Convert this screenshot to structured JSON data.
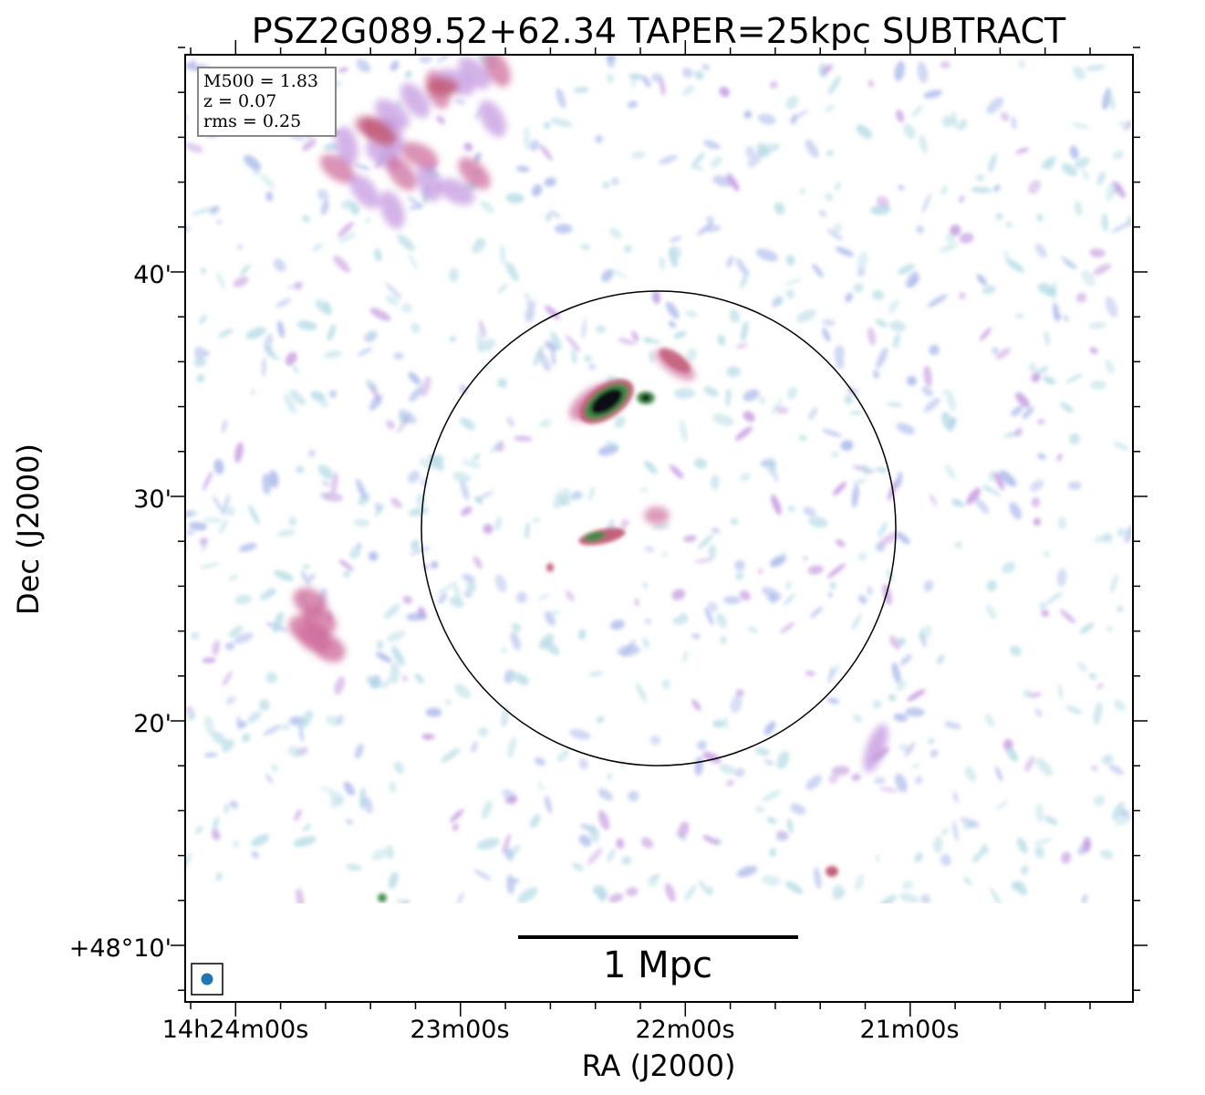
{
  "title": "PSZ2G089.52+62.34 TAPER=25kpc SUBTRACT",
  "x_axis": {
    "label": "RA (J2000)",
    "ticks": [
      "14h24m00s",
      "23m00s",
      "22m00s",
      "21m00s"
    ]
  },
  "y_axis": {
    "label": "Dec (J2000)",
    "ticks": [
      "40'",
      "30'",
      "20'",
      "+48°10'"
    ]
  },
  "info_box": {
    "m500": "M500 = 1.83",
    "z": "z = 0.07",
    "rms": "rms = 0.25"
  },
  "scale_bar": {
    "label": "1 Mpc"
  },
  "colors": {
    "noise_light": "#b8dde6",
    "noise_blue": "#a9b8ea",
    "noise_violet": "#c59be0",
    "emission_pink": "#cf6f9e",
    "emission_red": "#c05a74",
    "emission_green": "#3f8a4a",
    "emission_core": "#0b0f14",
    "beam": "#1f77b4"
  }
}
